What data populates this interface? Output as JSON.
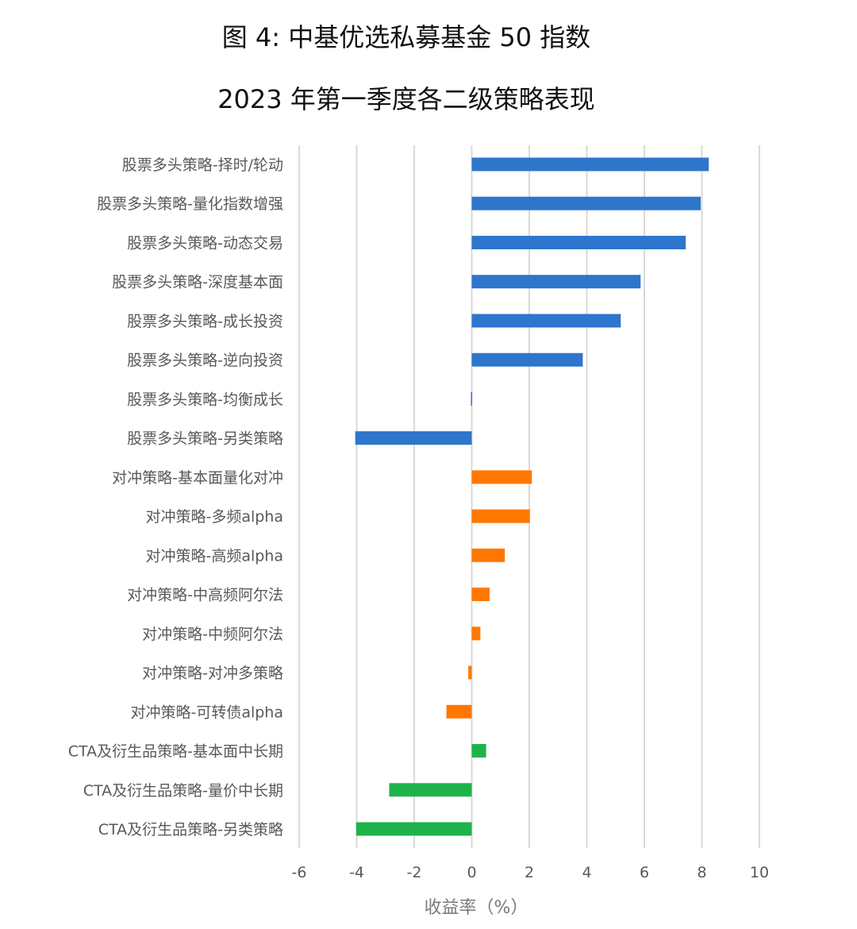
{
  "title_line1": "图 4:  中基优选私募基金 50 指数",
  "title_line2": "2023 年第一季度各二级策略表现",
  "chart_data": {
    "type": "bar",
    "orientation": "horizontal",
    "title": "图 4:  中基优选私募基金 50 指数 2023 年第一季度各二级策略表现",
    "xlabel": "收益率（%）",
    "ylabel": "",
    "xlim": [
      -6,
      10
    ],
    "xticks": [
      -6,
      -4,
      -2,
      0,
      2,
      4,
      6,
      8,
      10
    ],
    "grid": "vertical",
    "legend": "none",
    "categories": [
      "股票多头策略-择时/轮动",
      "股票多头策略-量化指数增强",
      "股票多头策略-动态交易",
      "股票多头策略-深度基本面",
      "股票多头策略-成长投资",
      "股票多头策略-逆向投资",
      "股票多头策略-均衡成长",
      "股票多头策略-另类策略",
      "对冲策略-基本面量化对冲",
      "对冲策略-多频alpha",
      "对冲策略-高频alpha",
      "对冲策略-中高频阿尔法",
      "对冲策略-中频阿尔法",
      "对冲策略-对冲多策略",
      "对冲策略-可转债alpha",
      "CTA及衍生品策略-基本面中长期",
      "CTA及衍生品策略-量价中长期",
      "CTA及衍生品策略-另类策略"
    ],
    "values": [
      8.24,
      7.96,
      7.44,
      5.87,
      5.18,
      3.86,
      -0.03,
      -4.05,
      2.09,
      2.02,
      1.15,
      0.62,
      0.3,
      -0.12,
      -0.88,
      0.5,
      -2.87,
      -4.02
    ],
    "bar_colors": [
      "#2e75cc",
      "#2e75cc",
      "#2e75cc",
      "#2e75cc",
      "#2e75cc",
      "#2e75cc",
      "#2e75cc",
      "#2e75cc",
      "#ff7700",
      "#ff7700",
      "#ff7700",
      "#ff7700",
      "#ff7700",
      "#ff7700",
      "#ff7700",
      "#1db34a",
      "#1db34a",
      "#1db34a"
    ]
  }
}
